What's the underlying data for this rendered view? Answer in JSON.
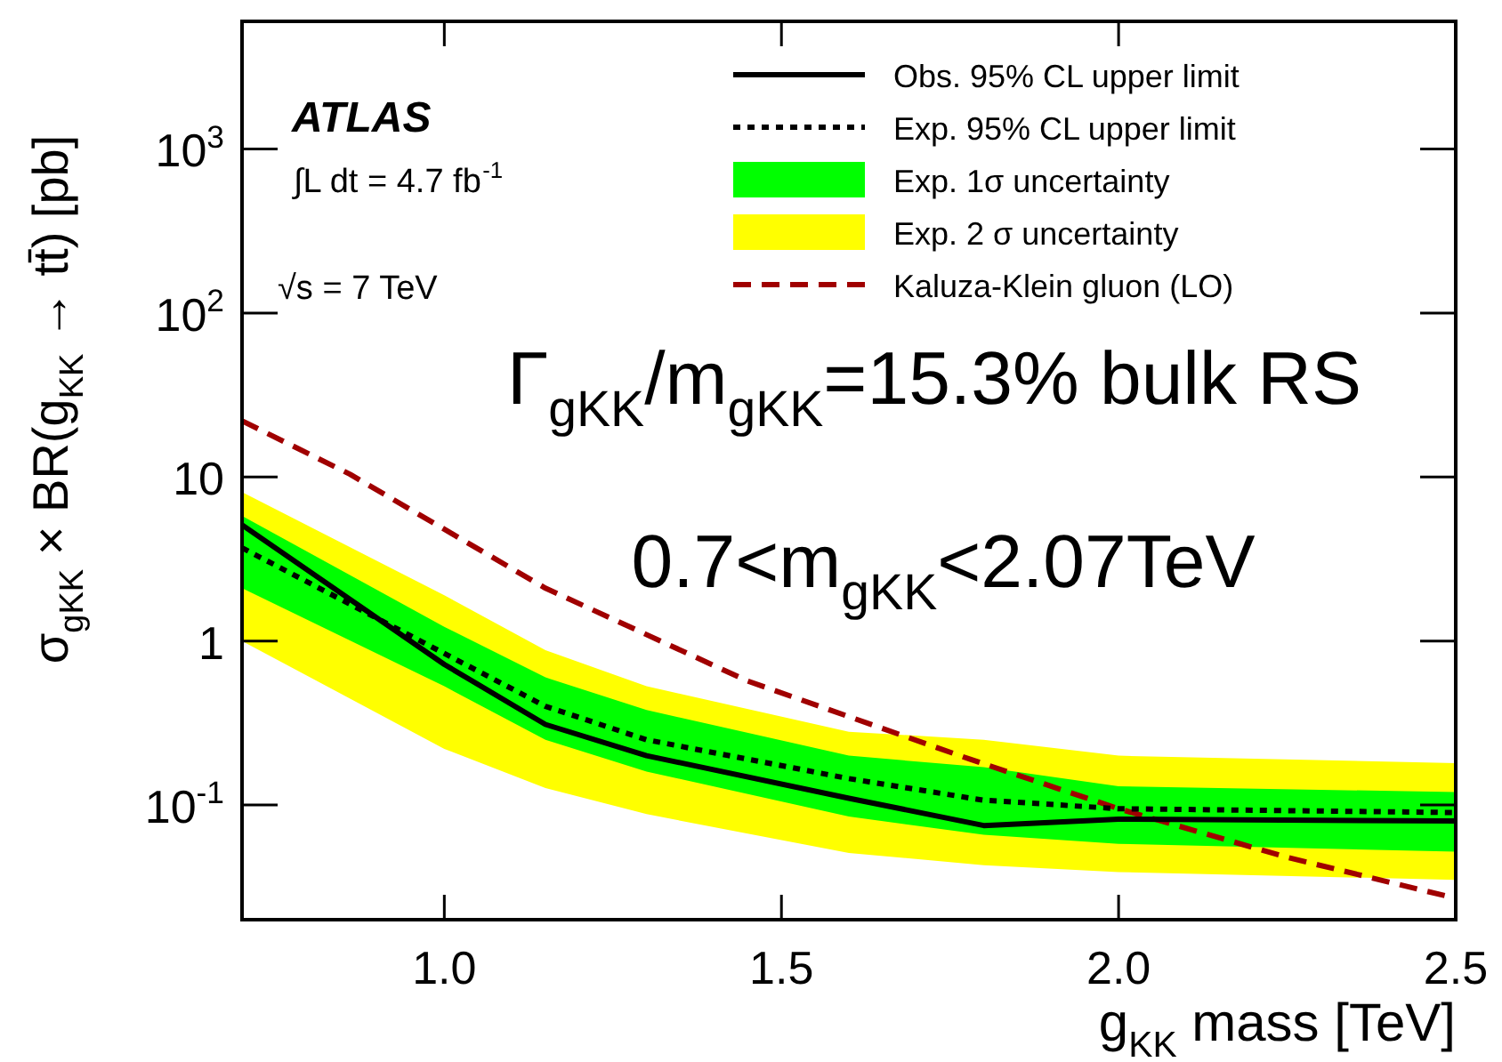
{
  "chart_data": {
    "type": "line",
    "xlabel": "g$_{KK}$ mass [TeV]",
    "ylabel": "σ$_{gKK}$ × BR(g$_{KK}$ → tt̄) [pb]",
    "x": [
      0.7,
      1.0,
      1.15,
      1.3,
      1.6,
      1.8,
      2.0,
      2.5
    ],
    "series": [
      {
        "name": "Obs. 95% CL upper limit",
        "type": "line",
        "color": "#000000",
        "line_style": "solid",
        "values": [
          5.1,
          0.72,
          0.31,
          0.2,
          0.11,
          0.075,
          0.082,
          0.08
        ]
      },
      {
        "name": "Exp. 95% CL upper limit",
        "type": "line",
        "color": "#000000",
        "line_style": "dotted",
        "values": [
          3.7,
          0.84,
          0.4,
          0.25,
          0.145,
          0.107,
          0.095,
          0.09
        ]
      },
      {
        "name": "Exp. 1σ uncertainty",
        "type": "line",
        "color": "#00ff00",
        "values": [
          null,
          null,
          null,
          null,
          null,
          null,
          null,
          null
        ],
        "lower": [
          2.1,
          0.53,
          0.25,
          0.16,
          0.085,
          0.066,
          0.058,
          0.052
        ],
        "upper": [
          5.8,
          1.22,
          0.6,
          0.38,
          0.2,
          0.17,
          0.13,
          0.12
        ]
      },
      {
        "name": "Exp. 2 σ uncertainty",
        "type": "line",
        "color": "#ffff00",
        "values": [
          null,
          null,
          null,
          null,
          null,
          null,
          null,
          null
        ],
        "lower": [
          1.0,
          0.22,
          0.127,
          0.088,
          0.051,
          0.043,
          0.039,
          0.035
        ],
        "upper": [
          8.1,
          1.9,
          0.88,
          0.53,
          0.28,
          0.25,
          0.2,
          0.18
        ]
      },
      {
        "name": "Kaluza-Klein gluon (LO)",
        "type": "line",
        "color": "#a00000",
        "line_style": "dashed",
        "x": [
          0.7,
          0.86,
          1.15,
          1.45,
          1.78,
          2.0,
          2.25,
          2.5
        ],
        "values": [
          22,
          10.4,
          2.1,
          0.57,
          0.19,
          0.095,
          0.048,
          0.027
        ]
      }
    ],
    "xlim": [
      0.7,
      2.5
    ],
    "xticks": [
      {
        "value": 1,
        "label": "1.0"
      },
      1.5,
      {
        "value": 2,
        "label": "2.0"
      },
      2.5
    ],
    "ylim": [
      0.02,
      6000
    ],
    "yticks": [
      {
        "value": 0.1,
        "label": "10$^{-1}$"
      },
      1,
      10,
      {
        "value": 100,
        "label": "10$^{2}$"
      },
      {
        "value": 1000,
        "label": "10$^{3}$"
      }
    ],
    "log": "y",
    "grid": false,
    "legend": "top right",
    "marker": "none",
    "annotations": [
      "ATLAS",
      "∫L dt = 4.7 fb$^{-1}$",
      "√s = 7 TeV",
      "Γ$_{gKK}$/m$_{gKK}$=15.3% bulk RS",
      "0.7<m$_{gKK}$<2.07TeV"
    ]
  }
}
